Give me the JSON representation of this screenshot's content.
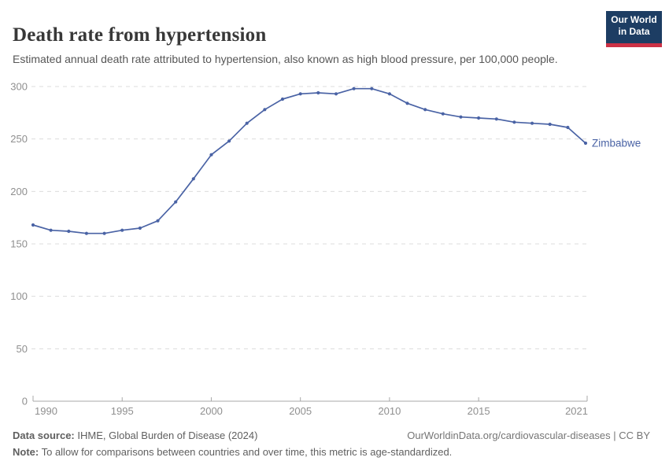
{
  "header": {
    "title": "Death rate from hypertension",
    "subtitle": "Estimated annual death rate attributed to hypertension, also known as high blood pressure, per 100,000 people.",
    "logo": {
      "line1": "Our World",
      "line2": "in Data",
      "bg_color": "#1d3d63",
      "accent_color": "#cc3145"
    }
  },
  "chart_data": {
    "type": "line",
    "title": "Death rate from hypertension",
    "xlabel": "",
    "ylabel": "",
    "x": [
      1990,
      1991,
      1992,
      1993,
      1994,
      1995,
      1996,
      1997,
      1998,
      1999,
      2000,
      2001,
      2002,
      2003,
      2004,
      2005,
      2006,
      2007,
      2008,
      2009,
      2010,
      2011,
      2012,
      2013,
      2014,
      2015,
      2016,
      2017,
      2018,
      2019,
      2020,
      2021
    ],
    "series": [
      {
        "name": "Zimbabwe",
        "color": "#4a63a5",
        "values": [
          168,
          163,
          162,
          160,
          160,
          163,
          165,
          172,
          190,
          212,
          235,
          248,
          265,
          278,
          288,
          293,
          294,
          293,
          298,
          298,
          293,
          284,
          278,
          274,
          271,
          270,
          269,
          266,
          265,
          264,
          261,
          246
        ]
      }
    ],
    "ylim": [
      0,
      300
    ],
    "yticks": [
      0,
      50,
      100,
      150,
      200,
      250,
      300
    ],
    "xticks": [
      1990,
      1995,
      2000,
      2005,
      2010,
      2015,
      2021
    ],
    "grid": "horizontal-dashed",
    "legend_position": "end-of-line-label",
    "axis_label_color": "#8f8f8f",
    "gridline_color": "#dcdcdc",
    "axis_line_color": "#a8a8a8"
  },
  "footer": {
    "datasource_label": "Data source:",
    "datasource_text": " IHME, Global Burden of Disease (2024)",
    "link_text": "OurWorldinData.org/cardiovascular-diseases | CC BY",
    "note_label": "Note:",
    "note_text": " To allow for comparisons between countries and over time, this metric is age-standardized."
  }
}
